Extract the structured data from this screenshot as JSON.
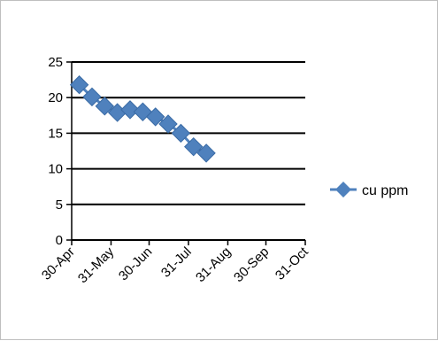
{
  "chart_data": {
    "type": "line",
    "title": "",
    "xlabel": "",
    "ylabel": "",
    "x_ticks": [
      "30-Apr",
      "31-May",
      "30-Jun",
      "31-Jul",
      "31-Aug",
      "30-Sep",
      "31-Oct"
    ],
    "ylim": [
      0,
      25
    ],
    "y_ticks": [
      0,
      5,
      10,
      15,
      20,
      25
    ],
    "grid": "horizontal major",
    "legend": "right",
    "series": [
      {
        "name": "cu ppm",
        "color": "#4F81BD",
        "marker": "diamond",
        "x": [
          "2012-05-06",
          "2012-05-16",
          "2012-05-26",
          "2012-06-05",
          "2012-06-15",
          "2012-06-25",
          "2012-07-05",
          "2012-07-15",
          "2012-07-25",
          "2012-08-04",
          "2012-08-14"
        ],
        "values": [
          21.8,
          20.1,
          18.8,
          17.9,
          18.3,
          18.0,
          17.3,
          16.3,
          15.0,
          13.1,
          12.2
        ]
      }
    ]
  }
}
